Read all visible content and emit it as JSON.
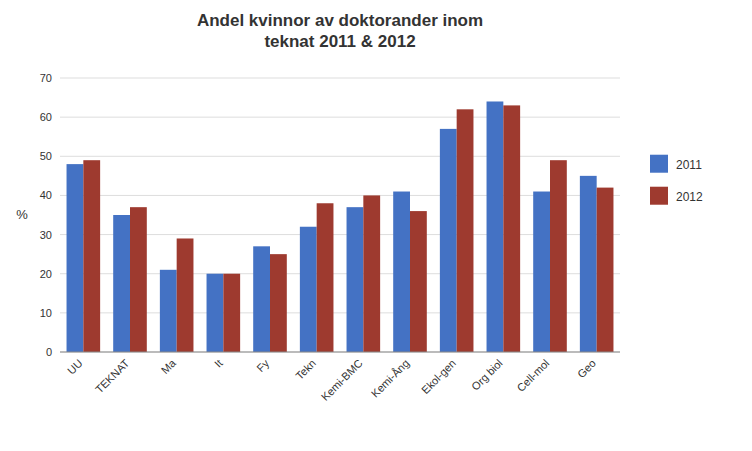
{
  "chart_data": {
    "type": "bar",
    "title": "Andel kvinnor av doktorander inom\nteknat 2011 & 2012",
    "y_label": "%",
    "categories": [
      "UU",
      "TEKNAT",
      "Ma",
      "It",
      "Fy",
      "Tekn",
      "Kemi-BMC",
      "Kemi-Ång",
      "Ekol-gen",
      "Org biol",
      "Cell-mol",
      "Geo"
    ],
    "series": [
      {
        "name": "2011",
        "color": "#4472C4",
        "values": [
          48,
          35,
          21,
          20,
          27,
          32,
          37,
          41,
          57,
          64,
          41,
          45
        ]
      },
      {
        "name": "2012",
        "color": "#9E3A2F",
        "values": [
          49,
          37,
          29,
          20,
          25,
          38,
          40,
          36,
          62,
          63,
          49,
          42
        ]
      }
    ],
    "ylim": [
      0,
      70
    ],
    "yticks": [
      0,
      10,
      20,
      30,
      40,
      50,
      60,
      70
    ],
    "grid": true,
    "legend": "right"
  }
}
